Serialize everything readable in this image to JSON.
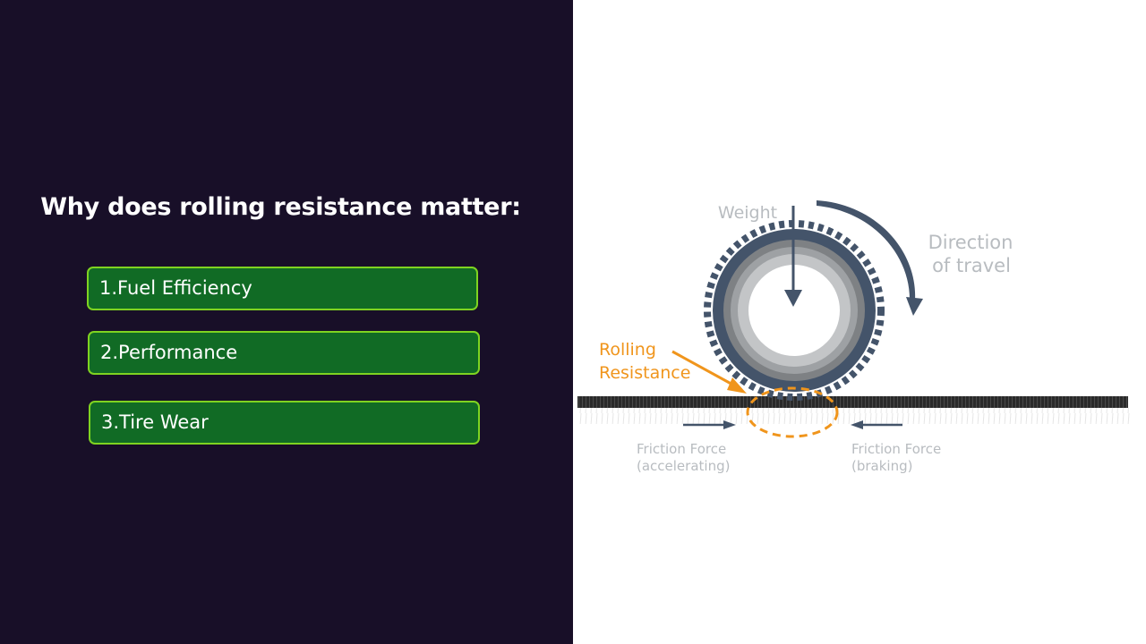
{
  "slide": {
    "title": "Why does rolling resistance matter:",
    "reasons": [
      {
        "label": "1.Fuel Efficiency"
      },
      {
        "label": "2.Performance"
      },
      {
        "label": "3.Tire Wear"
      }
    ]
  },
  "diagram": {
    "weight_label": "Weight",
    "direction_line1": "Direction",
    "direction_line2": "of travel",
    "rolling_line1": "Rolling",
    "rolling_line2": "Resistance",
    "friction_left_line1": "Friction Force",
    "friction_left_line2": "(accelerating)",
    "friction_right_line1": "Friction Force",
    "friction_right_line2": "(braking)"
  },
  "colors": {
    "left_background": "#180f28",
    "box_fill": "#116b25",
    "box_border": "#7fd321",
    "tire_dark": "#44546a",
    "orange": "#f0951c",
    "label_gray": "#b8bcc0"
  }
}
